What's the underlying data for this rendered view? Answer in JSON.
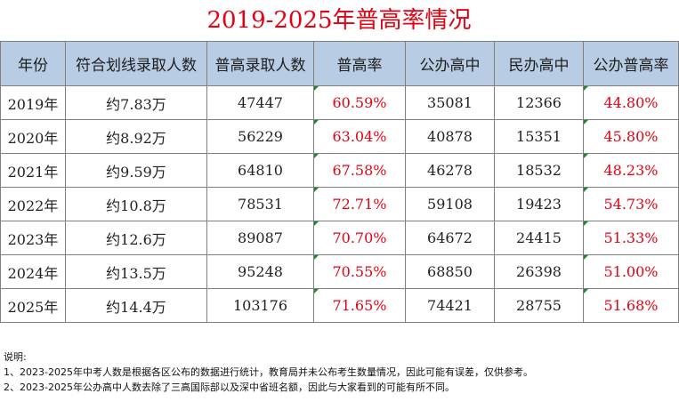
{
  "title": "2019-2025年普高率情况",
  "table": {
    "header": [
      "年份",
      "符合划线录取人数",
      "普高录取人数",
      "普高率",
      "公办高中",
      "民办高中",
      "公办普高率"
    ],
    "rows": [
      [
        "2019年",
        "约7.83万",
        "47447",
        "60.59%",
        "35081",
        "12366",
        "44.80%"
      ],
      [
        "2020年",
        "约8.92万",
        "56229",
        "63.04%",
        "40878",
        "15351",
        "45.80%"
      ],
      [
        "2021年",
        "约9.59万",
        "64810",
        "67.58%",
        "46278",
        "18532",
        "48.23%"
      ],
      [
        "2022年",
        "约10.8万",
        "78531",
        "72.71%",
        "59108",
        "19423",
        "54.73%"
      ],
      [
        "2023年",
        "约12.6万",
        "89087",
        "70.70%",
        "64672",
        "24415",
        "51.33%"
      ],
      [
        "2024年",
        "约13.5万",
        "95248",
        "70.55%",
        "68850",
        "26398",
        "51.00%"
      ],
      [
        "2025年",
        "约14.4万",
        "103176",
        "71.65%",
        "74421",
        "28755",
        "51.68%"
      ]
    ]
  },
  "notes": [
    "说明:",
    "1、2023-2025年中考人数是根据各区公布的数据进行统计，教育局并未公布考生数量情况，因此可能有误差，仅供参考。",
    "2、2023-2025年公办高中人数去除了三高国际部以及深中省班名额，因此与大家看到的可能有所不同。"
  ]
}
